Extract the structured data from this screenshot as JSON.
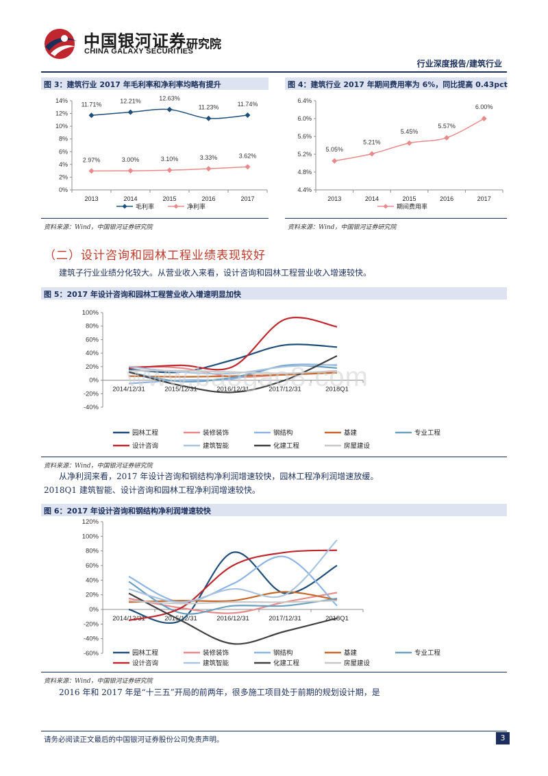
{
  "header": {
    "logo_cn": "中国银河证券",
    "logo_en": "CHINA GALAXY SECURITIES",
    "logo_dept": "研究院",
    "report_type": "行业深度报告/建筑行业"
  },
  "figures": {
    "fig3": {
      "title": "图 3：建筑行业 2017 年毛利率和净利率均略有提升",
      "source": "资料来源：Wind，中国银河证券研究院"
    },
    "fig4": {
      "title": "图 4：建筑行业 2017 年期间费用率为 6%，同比提高 0.43pct",
      "source": "资料来源：Wind，中国银河证券研究院"
    },
    "fig5": {
      "title": "图 5：2017 年设计咨询和园林工程营业收入增速明显加快",
      "source": "资料来源：Wind，中国银河证券研究院"
    },
    "fig6": {
      "title": "图 6：2017 年设计咨询和钢结构净利润增速较快",
      "source": "资料来源：Wind，中国银河证券研究院"
    }
  },
  "section": {
    "heading": "（二）设计咨询和园林工程业绩表现较好"
  },
  "paragraphs": {
    "p1": "建筑子行业业绩分化较大。从营业收入来看，设计咨询和园林工程营业收入增速较快。",
    "p2_line1": "从净利润来看，2017 年设计咨询和钢结构净利润增速较快，园林工程净利润增速放缓。",
    "p2_line2": "2018Q1 建筑智能、设计咨询和园林工程净利润增速较快。",
    "p3": "2016 年和 2017 年是“十三五”开局的前两年，很多施工项目处于前期的规划设计期，是"
  },
  "watermark": "www.baogao8.com",
  "footer": {
    "disclaimer": "请务必阅读正文最后的中国银河证券股份公司免责声明。",
    "page": "3"
  },
  "chart_data": [
    {
      "type": "line",
      "title": "图 3：建筑行业 2017 年毛利率和净利率均略有提升",
      "categories": [
        "2013",
        "2014",
        "2015",
        "2016",
        "2017"
      ],
      "ylim": [
        0,
        14
      ],
      "yticks": [
        "0%",
        "2%",
        "4%",
        "6%",
        "8%",
        "10%",
        "12%",
        "14%"
      ],
      "legend": "bottom",
      "series": [
        {
          "name": "毛利率",
          "values": [
            11.71,
            12.21,
            12.63,
            11.23,
            11.74
          ],
          "labels": [
            "11.71%",
            "12.21%",
            "12.63%",
            "11.23%",
            "11.74%"
          ],
          "color": "#1f4e79"
        },
        {
          "name": "净利率",
          "values": [
            2.97,
            3.0,
            3.1,
            3.33,
            3.62
          ],
          "labels": [
            "2.97%",
            "3.00%",
            "3.10%",
            "3.33%",
            "3.62%"
          ],
          "color": "#e8898b"
        }
      ]
    },
    {
      "type": "line",
      "title": "图 4：建筑行业 2017 年期间费用率为 6%，同比提高 0.43pct",
      "categories": [
        "2013",
        "2014",
        "2015",
        "2016",
        "2017"
      ],
      "ylim": [
        4.4,
        6.4
      ],
      "yticks": [
        "4.4%",
        "4.8%",
        "5.2%",
        "5.6%",
        "6.0%",
        "6.4%"
      ],
      "legend": "bottom",
      "series": [
        {
          "name": "期间费用率",
          "values": [
            5.05,
            5.21,
            5.45,
            5.57,
            6.0
          ],
          "labels": [
            "5.05%",
            "5.21%",
            "5.45%",
            "5.57%",
            "6.00%"
          ],
          "color": "#e8898b"
        }
      ]
    },
    {
      "type": "line",
      "title": "图 5：2017 年设计咨询和园林工程营业收入增速明显加快",
      "categories": [
        "2014/12/31",
        "2015/12/31",
        "2016/12/31",
        "2017/12/31",
        "2018Q1"
      ],
      "ylim": [
        -40,
        100
      ],
      "yticks": [
        "-40%",
        "-20%",
        "0%",
        "20%",
        "40%",
        "60%",
        "80%",
        "100%"
      ],
      "legend": "bottom",
      "series": [
        {
          "name": "园林工程",
          "values": [
            16,
            12,
            30,
            52,
            49
          ],
          "color": "#1f4e79"
        },
        {
          "name": "装修装饰",
          "values": [
            20,
            18,
            5,
            8,
            12
          ],
          "color": "#e8898b"
        },
        {
          "name": "钢结构",
          "values": [
            -5,
            0,
            2,
            22,
            22
          ],
          "color": "#8eb4e3"
        },
        {
          "name": "基建",
          "values": [
            6,
            5,
            6,
            8,
            11
          ],
          "color": "#c5682b"
        },
        {
          "name": "专业工程",
          "values": [
            12,
            -2,
            4,
            21,
            18
          ],
          "color": "#6a9fc0"
        },
        {
          "name": "设计咨询",
          "values": [
            18,
            22,
            20,
            90,
            79
          ],
          "color": "#c0262d"
        },
        {
          "name": "建筑智能",
          "values": [
            20,
            12,
            10,
            20,
            23
          ],
          "color": "#a9c4de"
        },
        {
          "name": "化建工程",
          "values": [
            12,
            -8,
            -18,
            0,
            36
          ],
          "color": "#404040"
        },
        {
          "name": "房屋建设",
          "values": [
            14,
            14,
            12,
            10,
            14
          ],
          "color": "#c8c8c8"
        }
      ]
    },
    {
      "type": "line",
      "title": "图 6：2017 年设计咨询和钢结构净利润增速较快",
      "categories": [
        "2014/12/31",
        "2015/12/31",
        "2016/12/31",
        "2017/12/31",
        "2018Q1"
      ],
      "ylim": [
        -60,
        120
      ],
      "yticks": [
        "-60%",
        "-40%",
        "-20%",
        "0%",
        "20%",
        "40%",
        "60%",
        "80%",
        "100%",
        "120%"
      ],
      "legend": "bottom",
      "series": [
        {
          "name": "园林工程",
          "values": [
            0,
            -15,
            78,
            22,
            60
          ],
          "color": "#1f4e79"
        },
        {
          "name": "装修装饰",
          "values": [
            15,
            2,
            -5,
            10,
            23
          ],
          "color": "#e8898b"
        },
        {
          "name": "钢结构",
          "values": [
            45,
            10,
            35,
            72,
            5
          ],
          "color": "#8eb4e3"
        },
        {
          "name": "基建",
          "values": [
            10,
            12,
            12,
            24,
            13
          ],
          "color": "#c5682b"
        },
        {
          "name": "专业工程",
          "values": [
            38,
            -5,
            5,
            5,
            15
          ],
          "color": "#6a9fc0"
        },
        {
          "name": "设计咨询",
          "values": [
            -15,
            2,
            60,
            78,
            81
          ],
          "color": "#c0262d"
        },
        {
          "name": "建筑智能",
          "values": [
            28,
            10,
            28,
            20,
            95
          ],
          "color": "#a9c4de"
        },
        {
          "name": "化建工程",
          "values": [
            22,
            -15,
            -47,
            -30,
            -12
          ],
          "color": "#404040"
        },
        {
          "name": "房屋建设",
          "values": [
            12,
            8,
            10,
            10,
            12
          ],
          "color": "#c8c8c8"
        }
      ]
    }
  ]
}
